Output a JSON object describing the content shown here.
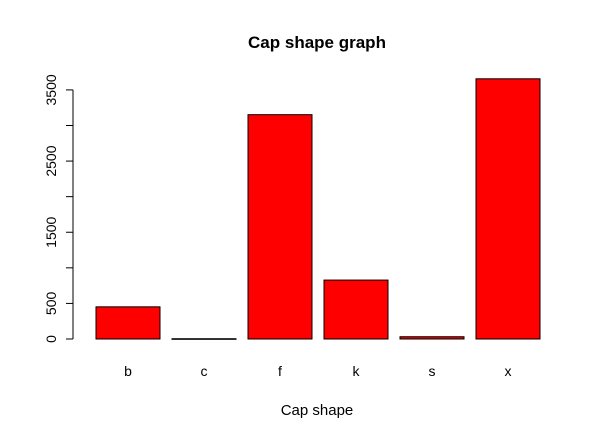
{
  "chart_data": {
    "type": "bar",
    "title": "Cap shape graph",
    "xlabel": "Cap shape",
    "ylabel": "",
    "categories": [
      "b",
      "c",
      "f",
      "k",
      "s",
      "x"
    ],
    "values": [
      452,
      4,
      3152,
      828,
      32,
      3656
    ],
    "ylim": [
      0,
      3656
    ],
    "yticks": [
      0,
      500,
      1000,
      1500,
      2000,
      2500,
      3000,
      3500
    ],
    "ytick_labels": [
      "0",
      "500",
      "",
      "1500",
      "",
      "2500",
      "",
      "3500"
    ],
    "grid": false,
    "legend": "none",
    "bar_color": "#ff0000",
    "bar_border_color": "#000000"
  }
}
